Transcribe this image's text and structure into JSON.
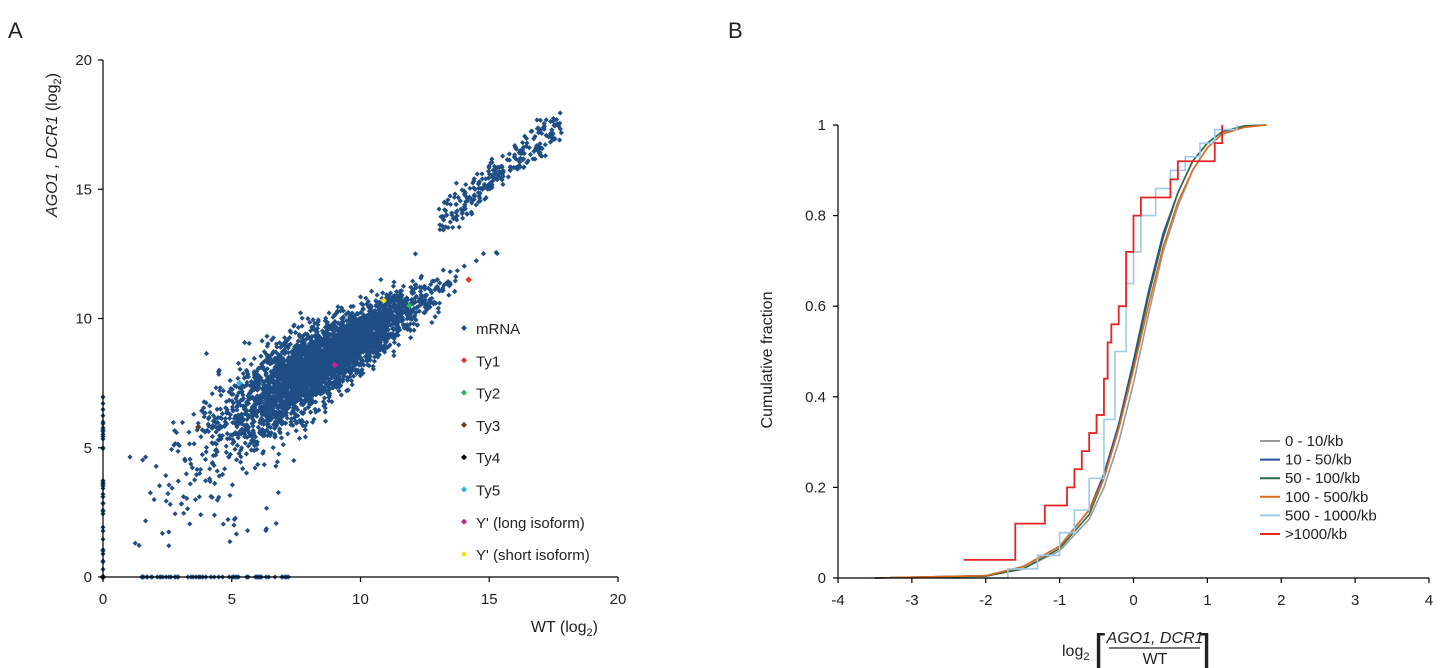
{
  "chart_data": [
    {
      "panel_label": "A",
      "type": "scatter",
      "title": "",
      "xlabel": "WT (log",
      "xlabel_sub": "2",
      "xlabel_end": ")",
      "ylabel_italic": "AGO1 , DCR1",
      "ylabel_rest": " (log",
      "ylabel_sub": "2",
      "ylabel_end": ")",
      "xlim": [
        0,
        20
      ],
      "ylim": [
        0,
        20
      ],
      "xticks": [
        "0",
        "5",
        "10",
        "15",
        "20"
      ],
      "yticks": [
        "0",
        "5",
        "10",
        "15",
        "20"
      ],
      "legend_position": "right-middle",
      "series": [
        {
          "name": "mRNA",
          "color": "#1f4e84"
        },
        {
          "name": "Ty1",
          "color": "#e8352a",
          "points": [
            [
              14.2,
              11.5
            ]
          ]
        },
        {
          "name": "Ty2",
          "color": "#2bb35a",
          "points": [
            [
              11.9,
              10.5
            ]
          ]
        },
        {
          "name": "Ty3",
          "color": "#6b3a1c",
          "points": [
            [
              3.7,
              5.8
            ]
          ]
        },
        {
          "name": "Ty4",
          "color": "#000000",
          "points": [
            [
              0,
              0
            ]
          ]
        },
        {
          "name": "Ty5",
          "color": "#2ab3e0",
          "points": [
            [
              5.3,
              7.5
            ]
          ]
        },
        {
          "name": "Y' (long isoform)",
          "color": "#c2258f",
          "points": [
            [
              9.0,
              8.2
            ]
          ]
        },
        {
          "name": "Y' (short isoform)",
          "color": "#f2e21a",
          "points": [
            [
              10.9,
              10.7
            ]
          ]
        }
      ]
    },
    {
      "panel_label": "B",
      "type": "line",
      "title": "",
      "xlabel_prefix": "log",
      "xlabel_sub": "2",
      "xlabel_numerator": "AGO1, DCR1",
      "xlabel_denominator": "WT",
      "ylabel": "Cumulative fraction",
      "xlim": [
        -4,
        4
      ],
      "ylim": [
        0,
        1
      ],
      "xticks": [
        "-4",
        "-3",
        "-2",
        "-1",
        "0",
        "1",
        "2",
        "3",
        "4"
      ],
      "yticks": [
        "0",
        "0.2",
        "0.4",
        "0.6",
        "0.8",
        "1"
      ],
      "legend_position": "bottom-right",
      "series": [
        {
          "name": "0 - 10/kb",
          "color": "#9a9a9a",
          "x": [
            -3.5,
            -2.0,
            -1.5,
            -1.0,
            -0.6,
            -0.4,
            -0.2,
            0.0,
            0.2,
            0.4,
            0.6,
            0.8,
            1.0,
            1.2,
            1.5,
            1.8
          ],
          "y": [
            0,
            0.005,
            0.02,
            0.06,
            0.13,
            0.2,
            0.3,
            0.43,
            0.58,
            0.72,
            0.82,
            0.9,
            0.95,
            0.98,
            0.995,
            1
          ]
        },
        {
          "name": "10 - 50/kb",
          "color": "#2b4b9b",
          "x": [
            -3.5,
            -2.0,
            -1.5,
            -1.0,
            -0.6,
            -0.4,
            -0.2,
            0.0,
            0.2,
            0.4,
            0.6,
            0.8,
            1.0,
            1.2,
            1.5,
            1.8
          ],
          "y": [
            0,
            0.005,
            0.025,
            0.07,
            0.15,
            0.23,
            0.34,
            0.48,
            0.63,
            0.76,
            0.85,
            0.92,
            0.96,
            0.985,
            0.998,
            1
          ]
        },
        {
          "name": "50 - 100/kb",
          "color": "#2e6b4a",
          "x": [
            -3.5,
            -2.0,
            -1.5,
            -1.0,
            -0.6,
            -0.4,
            -0.2,
            0.0,
            0.2,
            0.4,
            0.6,
            0.8,
            1.0,
            1.2,
            1.5,
            1.8
          ],
          "y": [
            0,
            0.004,
            0.02,
            0.065,
            0.14,
            0.22,
            0.33,
            0.47,
            0.62,
            0.75,
            0.85,
            0.92,
            0.96,
            0.985,
            0.998,
            1
          ]
        },
        {
          "name": "100 - 500/kb",
          "color": "#e06a1b",
          "x": [
            -3.5,
            -2.0,
            -1.5,
            -1.0,
            -0.6,
            -0.4,
            -0.2,
            0.0,
            0.2,
            0.4,
            0.6,
            0.8,
            1.0,
            1.2,
            1.5,
            1.8
          ],
          "y": [
            0,
            0.005,
            0.025,
            0.07,
            0.15,
            0.22,
            0.33,
            0.46,
            0.6,
            0.73,
            0.83,
            0.9,
            0.95,
            0.98,
            0.995,
            1
          ]
        },
        {
          "name": "500 - 1000/kb",
          "color": "#9ccbe8",
          "x": [
            -2.0,
            -1.7,
            -1.3,
            -1.0,
            -0.8,
            -0.6,
            -0.4,
            -0.25,
            -0.1,
            0.0,
            0.1,
            0.3,
            0.5,
            0.7,
            0.9,
            1.1,
            1.4
          ],
          "y": [
            0,
            0.02,
            0.05,
            0.1,
            0.15,
            0.22,
            0.35,
            0.5,
            0.65,
            0.72,
            0.8,
            0.86,
            0.9,
            0.93,
            0.96,
            0.99,
            1
          ]
        },
        {
          "name": ">1000/kb",
          "color": "#e32525",
          "x": [
            -2.3,
            -1.6,
            -1.2,
            -0.9,
            -0.8,
            -0.7,
            -0.6,
            -0.5,
            -0.4,
            -0.35,
            -0.3,
            -0.2,
            -0.1,
            0.0,
            0.1,
            0.3,
            0.5,
            0.6,
            0.8,
            1.1,
            1.2
          ],
          "y": [
            0.04,
            0.12,
            0.16,
            0.2,
            0.24,
            0.28,
            0.32,
            0.36,
            0.44,
            0.52,
            0.56,
            0.6,
            0.72,
            0.8,
            0.84,
            0.84,
            0.88,
            0.92,
            0.92,
            0.96,
            1
          ]
        }
      ]
    }
  ]
}
